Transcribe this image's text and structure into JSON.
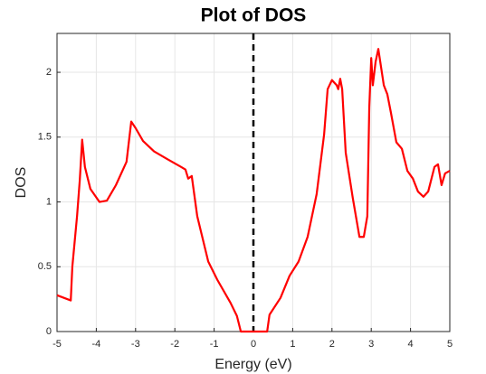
{
  "chart_data": {
    "type": "line",
    "title": "Plot of DOS",
    "x_label": "Energy (eV)",
    "y_label": "DOS",
    "x": [
      -5,
      -4.65,
      -4.61,
      -4.49,
      -4.42,
      -4.36,
      -4.29,
      -4.15,
      -3.92,
      -3.73,
      -3.5,
      -3.23,
      -3.11,
      -3.0,
      -2.81,
      -2.53,
      -2.19,
      -1.84,
      -1.73,
      -1.66,
      -1.57,
      -1.43,
      -1.15,
      -0.92,
      -0.58,
      -0.42,
      -0.32,
      0.35,
      0.41,
      0.69,
      0.92,
      1.15,
      1.38,
      1.61,
      1.8,
      1.89,
      2.0,
      2.12,
      2.16,
      2.21,
      2.26,
      2.35,
      2.53,
      2.7,
      2.81,
      2.9,
      2.95,
      3.0,
      3.04,
      3.11,
      3.18,
      3.23,
      3.32,
      3.41,
      3.5,
      3.64,
      3.78,
      3.92,
      4.06,
      4.19,
      4.33,
      4.45,
      4.61,
      4.7,
      4.79,
      4.88,
      5.0
    ],
    "series": [
      {
        "name": "DOS",
        "color": "#ff0000",
        "values": [
          0.28,
          0.24,
          0.5,
          0.89,
          1.17,
          1.48,
          1.27,
          1.1,
          1.0,
          1.01,
          1.13,
          1.31,
          1.62,
          1.57,
          1.47,
          1.39,
          1.33,
          1.27,
          1.25,
          1.18,
          1.2,
          0.89,
          0.54,
          0.4,
          0.22,
          0.12,
          0,
          0,
          0.13,
          0.26,
          0.43,
          0.54,
          0.73,
          1.06,
          1.52,
          1.87,
          1.94,
          1.9,
          1.87,
          1.95,
          1.87,
          1.38,
          1.03,
          0.73,
          0.73,
          0.89,
          1.73,
          2.11,
          1.9,
          2.08,
          2.18,
          2.08,
          1.9,
          1.83,
          1.69,
          1.46,
          1.41,
          1.24,
          1.18,
          1.08,
          1.04,
          1.08,
          1.27,
          1.29,
          1.13,
          1.22,
          1.24
        ]
      }
    ],
    "vline": 0,
    "xlim": [
      -5,
      5
    ],
    "ylim": [
      0,
      2.3
    ],
    "xticks": [
      -5,
      -4,
      -3,
      -2,
      -1,
      0,
      1,
      2,
      3,
      4,
      5
    ],
    "yticks": [
      0,
      0.5,
      1,
      1.5,
      2
    ],
    "grid": true
  }
}
